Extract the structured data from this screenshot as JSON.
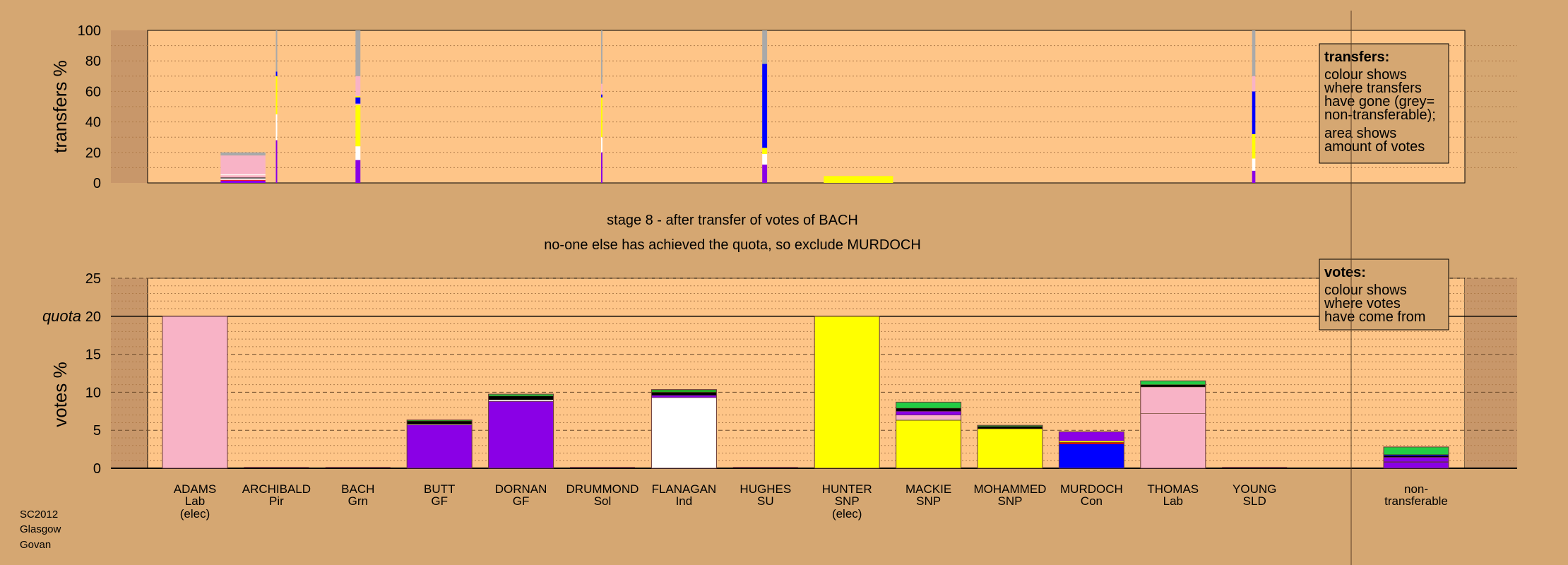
{
  "chart_data": [
    {
      "type": "bar",
      "panel": "transfers",
      "ylabel": "transfers %",
      "ylim": [
        0,
        100
      ],
      "yticks": [
        "0",
        "20",
        "40",
        "60",
        "80",
        "100"
      ],
      "grid": "dotted",
      "legend": {
        "placement": "top-right",
        "title": "transfers:",
        "lines1": [
          "colour shows",
          "where transfers",
          "have gone (grey=",
          "non-transferable);"
        ],
        "lines2": [
          "area shows",
          "amount of votes"
        ]
      },
      "bars": [
        {
          "x": 0.59,
          "width": 0.55,
          "segments": [
            {
              "color": "#8a00e6",
              "from": 0,
              "to": 1.5
            },
            {
              "color": "#ff0000",
              "from": 1.5,
              "to": 2
            },
            {
              "color": "#ffffff",
              "from": 2,
              "to": 3
            },
            {
              "color": "#000000",
              "from": 3,
              "to": 3.5
            },
            {
              "color": "#f8b3c6",
              "from": 3.5,
              "to": 5
            },
            {
              "color": "#ffffff",
              "from": 5,
              "to": 5.7
            },
            {
              "color": "#f8b3c6",
              "from": 5.7,
              "to": 18
            },
            {
              "color": "#a9a9a9",
              "from": 18,
              "to": 20
            }
          ]
        },
        {
          "x": 1.0,
          "width": 0.015,
          "segments": [
            {
              "color": "#8a00e6",
              "from": 0,
              "to": 28
            },
            {
              "color": "#ffffff",
              "from": 28,
              "to": 45
            },
            {
              "color": "#ffff00",
              "from": 45,
              "to": 70
            },
            {
              "color": "#0000ff",
              "from": 70,
              "to": 73
            },
            {
              "color": "#a9a9a9",
              "from": 73,
              "to": 100
            }
          ]
        },
        {
          "x": 2.0,
          "width": 0.06,
          "segments": [
            {
              "color": "#8a00e6",
              "from": 0,
              "to": 15
            },
            {
              "color": "#ffffff",
              "from": 15,
              "to": 24
            },
            {
              "color": "#ffff00",
              "from": 24,
              "to": 51
            },
            {
              "color": "#f8b3c6",
              "from": 51,
              "to": 52
            },
            {
              "color": "#0000ff",
              "from": 52,
              "to": 56
            },
            {
              "color": "#ffff00",
              "from": 56,
              "to": 57
            },
            {
              "color": "#f8b3c6",
              "from": 57,
              "to": 70
            },
            {
              "color": "#a9a9a9",
              "from": 70,
              "to": 100
            }
          ]
        },
        {
          "x": 4.99,
          "width": 0.015,
          "segments": [
            {
              "color": "#8a00e6",
              "from": 0,
              "to": 20
            },
            {
              "color": "#ffffff",
              "from": 20,
              "to": 30
            },
            {
              "color": "#ffff00",
              "from": 30,
              "to": 56
            },
            {
              "color": "#0000ff",
              "from": 56,
              "to": 58
            },
            {
              "color": "#f8b3c6",
              "from": 58,
              "to": 65
            },
            {
              "color": "#a9a9a9",
              "from": 65,
              "to": 100
            }
          ]
        },
        {
          "x": 6.99,
          "width": 0.06,
          "segments": [
            {
              "color": "#8a00e6",
              "from": 0,
              "to": 12
            },
            {
              "color": "#ffffff",
              "from": 12,
              "to": 19
            },
            {
              "color": "#ffff00",
              "from": 19,
              "to": 23
            },
            {
              "color": "#0000ff",
              "from": 23,
              "to": 78
            },
            {
              "color": "#a9a9a9",
              "from": 78,
              "to": 100
            }
          ]
        },
        {
          "x": 8.14,
          "width": 0.85,
          "segments": [
            {
              "color": "#ffff00",
              "from": 0,
              "to": 4.5
            }
          ]
        },
        {
          "x": 12.99,
          "width": 0.04,
          "segments": [
            {
              "color": "#8a00e6",
              "from": 0,
              "to": 8
            },
            {
              "color": "#ffffff",
              "from": 8,
              "to": 16
            },
            {
              "color": "#ffff00",
              "from": 16,
              "to": 32
            },
            {
              "color": "#0000ff",
              "from": 32,
              "to": 60
            },
            {
              "color": "#f8b3c6",
              "from": 60,
              "to": 70
            },
            {
              "color": "#a9a9a9",
              "from": 70,
              "to": 100
            }
          ]
        }
      ]
    },
    {
      "type": "bar",
      "panel": "votes",
      "ylabel": "votes %",
      "ylim": [
        0,
        25
      ],
      "yticks": [
        "0",
        "5",
        "10",
        "15",
        "20",
        "25"
      ],
      "quota_label": "quota",
      "quota": 20,
      "grid": "dotted",
      "legend": {
        "placement": "top-right",
        "title": "votes:",
        "lines1": [
          "colour shows",
          "where votes",
          "have come from"
        ]
      },
      "categories": [
        {
          "name": "ADAMS",
          "party": "Lab",
          "note": "(elec)",
          "segments": [
            {
              "color": "#f8b3c6",
              "value": 20
            }
          ]
        },
        {
          "name": "ARCHIBALD",
          "party": "Pir",
          "note": "",
          "segments": []
        },
        {
          "name": "BACH",
          "party": "Grn",
          "note": "",
          "segments": []
        },
        {
          "name": "BUTT",
          "party": "GF",
          "note": "",
          "segments": [
            {
              "color": "#8a00e6",
              "value": 5.7
            },
            {
              "color": "#ffffff",
              "value": 0.1
            },
            {
              "color": "#000000",
              "value": 0.4
            },
            {
              "color": "#22aa22",
              "value": 0.15
            }
          ]
        },
        {
          "name": "DORNAN",
          "party": "GF",
          "note": "",
          "segments": [
            {
              "color": "#8a00e6",
              "value": 8.8
            },
            {
              "color": "#ffffff",
              "value": 0.2
            },
            {
              "color": "#000000",
              "value": 0.5
            },
            {
              "color": "#22cc44",
              "value": 0.25
            }
          ]
        },
        {
          "name": "DRUMMOND",
          "party": "Sol",
          "note": "",
          "segments": []
        },
        {
          "name": "FLANAGAN",
          "party": "Ind",
          "note": "",
          "segments": [
            {
              "color": "#ffffff",
              "value": 9.3
            },
            {
              "color": "#8a00e6",
              "value": 0.3
            },
            {
              "color": "#000000",
              "value": 0.4
            },
            {
              "color": "#22aa22",
              "value": 0.35
            }
          ]
        },
        {
          "name": "HUGHES",
          "party": "SU",
          "note": "",
          "segments": []
        },
        {
          "name": "HUNTER",
          "party": "SNP",
          "note": "(elec)",
          "segments": [
            {
              "color": "#ffff00",
              "value": 20
            }
          ]
        },
        {
          "name": "MACKIE",
          "party": "SNP",
          "note": "",
          "segments": [
            {
              "color": "#ffff00",
              "value": 6.3
            },
            {
              "color": "#ffffff",
              "value": 0.1
            },
            {
              "color": "#f8b3c6",
              "value": 0.6
            },
            {
              "color": "#8a00e6",
              "value": 0.5
            },
            {
              "color": "#000000",
              "value": 0.4
            },
            {
              "color": "#22cc44",
              "value": 0.8
            }
          ]
        },
        {
          "name": "MOHAMMED",
          "party": "SNP",
          "note": "",
          "segments": [
            {
              "color": "#ffff00",
              "value": 5.2
            },
            {
              "color": "#000000",
              "value": 0.3
            },
            {
              "color": "#22cc44",
              "value": 0.15
            }
          ]
        },
        {
          "name": "MURDOCH",
          "party": "Con",
          "note": "",
          "segments": [
            {
              "color": "#0000ff",
              "value": 3.2
            },
            {
              "color": "#ff0000",
              "value": 0.2
            },
            {
              "color": "#ffff00",
              "value": 0.2
            },
            {
              "color": "#8a00e6",
              "value": 1.2
            }
          ]
        },
        {
          "name": "THOMAS",
          "party": "Lab",
          "note": "",
          "segments": [
            {
              "color": "#f8b3c6",
              "value": 7.2
            },
            {
              "color": "#f8b3c6",
              "value": 3.5
            },
            {
              "color": "#000000",
              "value": 0.3
            },
            {
              "color": "#22cc44",
              "value": 0.5
            }
          ]
        },
        {
          "name": "YOUNG",
          "party": "SLD",
          "note": "",
          "segments": []
        }
      ],
      "nontransferable": {
        "label1": "non-",
        "label2": "transferable",
        "segments": [
          {
            "color": "#8a00e6",
            "value": 0.8
          },
          {
            "color": "#ffffff",
            "value": 0.05
          },
          {
            "color": "#8a00e6",
            "value": 0.6
          },
          {
            "color": "#000000",
            "value": 0.2
          },
          {
            "color": "#0000ff",
            "value": 0.15
          },
          {
            "color": "#22cc44",
            "value": 1.0
          }
        ]
      }
    }
  ],
  "stage_text": "stage 8 - after transfer of votes of BACH",
  "decision_text": "no-one else has achieved the quota, so exclude MURDOCH",
  "corner": [
    "SC2012",
    "Glasgow",
    "Govan"
  ],
  "colors": {
    "background": "#d5a772",
    "plot_bg": "#fec588",
    "side_bg": "#c8976a"
  }
}
